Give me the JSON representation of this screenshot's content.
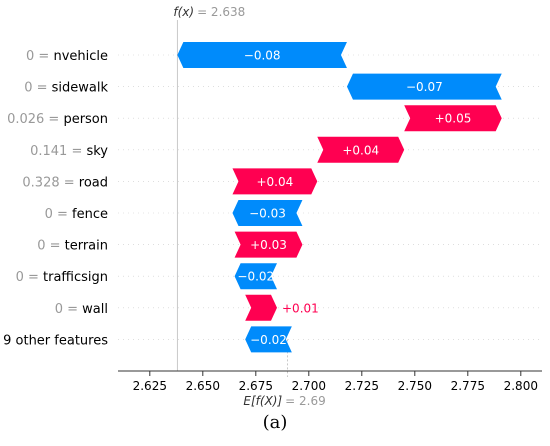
{
  "chart_data": {
    "type": "waterfall",
    "title": "",
    "xlabel": "",
    "ylabel": "",
    "xlim": [
      2.61,
      2.81
    ],
    "xticks": [
      "2.625",
      "2.650",
      "2.675",
      "2.700",
      "2.725",
      "2.750",
      "2.775",
      "2.800"
    ],
    "fx_label": "f(x)",
    "fx_value_text": "= 2.638",
    "fx": 2.638,
    "efx_label": "E[f(X)]",
    "efx_value_text": "= 2.69",
    "efx": 2.69,
    "features": [
      {
        "value": "0",
        "name": "nvehicle",
        "label": "−0.08",
        "start": 2.718,
        "end": 2.638
      },
      {
        "value": "0",
        "name": "sidewalk",
        "label": "−0.07",
        "start": 2.791,
        "end": 2.718
      },
      {
        "value": "0.026",
        "name": "person",
        "label": "+0.05",
        "start": 2.745,
        "end": 2.791
      },
      {
        "value": "0.141",
        "name": "sky",
        "label": "+0.04",
        "start": 2.704,
        "end": 2.745
      },
      {
        "value": "0.328",
        "name": "road",
        "label": "+0.04",
        "start": 2.664,
        "end": 2.704
      },
      {
        "value": "0",
        "name": "fence",
        "label": "−0.03",
        "start": 2.697,
        "end": 2.664
      },
      {
        "value": "0",
        "name": "terrain",
        "label": "+0.03",
        "start": 2.665,
        "end": 2.697
      },
      {
        "value": "0",
        "name": "trafficsign",
        "label": "−0.02",
        "start": 2.685,
        "end": 2.665
      },
      {
        "value": "0",
        "name": "wall",
        "label": "+0.01",
        "start": 2.67,
        "end": 2.685
      },
      {
        "value": "",
        "name": "9 other features",
        "label": "−0.02",
        "start": 2.692,
        "end": 2.67
      }
    ],
    "colors": {
      "positive": "#ff0051",
      "negative": "#008bfb",
      "value_grey": "#999999"
    }
  },
  "caption": "(a)"
}
